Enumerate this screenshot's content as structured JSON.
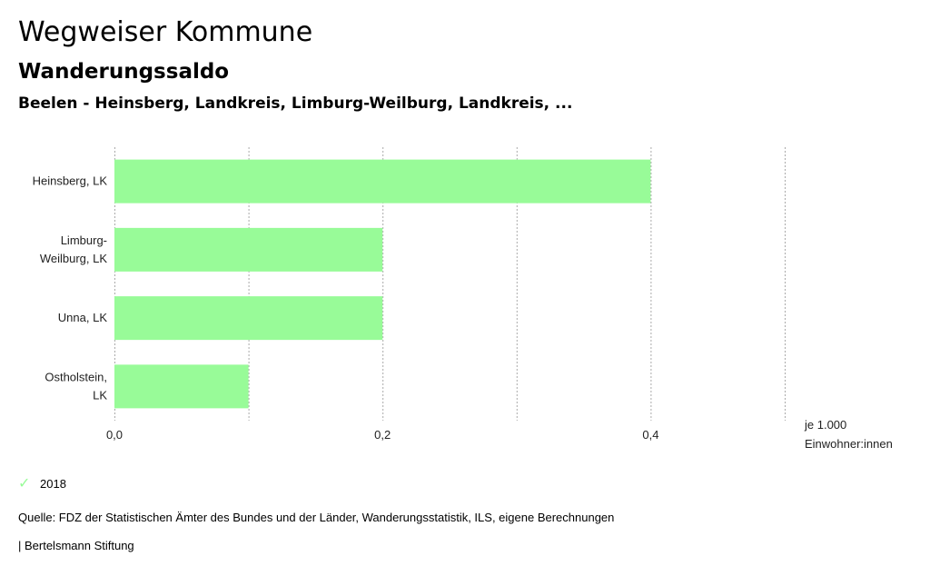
{
  "header": {
    "title": "Wegweiser Kommune",
    "subtitle": "Wanderungssaldo",
    "entities": "Beelen - Heinsberg, Landkreis, Limburg-Weilburg, Landkreis, ..."
  },
  "chart_data": {
    "type": "bar",
    "orientation": "horizontal",
    "categories": [
      [
        "Heinsberg, LK"
      ],
      [
        "Limburg-",
        "Weilburg, LK"
      ],
      [
        "Unna, LK"
      ],
      [
        "Ostholstein,",
        "LK"
      ]
    ],
    "series": [
      {
        "name": "2018",
        "values": [
          0.4,
          0.2,
          0.2,
          0.1
        ]
      }
    ],
    "xlim": [
      0,
      0.5
    ],
    "grid_values": [
      0,
      0.1,
      0.2,
      0.3,
      0.4,
      0.5
    ],
    "tick_values": [
      0,
      0.2,
      0.4
    ],
    "tick_labels": [
      "0,0",
      "0,2",
      "0,4"
    ],
    "unit_label": [
      "je 1.000",
      "Einwohner:innen"
    ],
    "grid": true,
    "bar_color": "#98fb98",
    "grid_color": "#aaaaaa"
  },
  "legend": {
    "label": "2018",
    "icon": "check-icon"
  },
  "footer": {
    "source": "Quelle: FDZ der Statistischen Ämter des Bundes und der Länder, Wanderungsstatistik, ILS, eigene Berechnungen",
    "credit": "| Bertelsmann Stiftung"
  }
}
